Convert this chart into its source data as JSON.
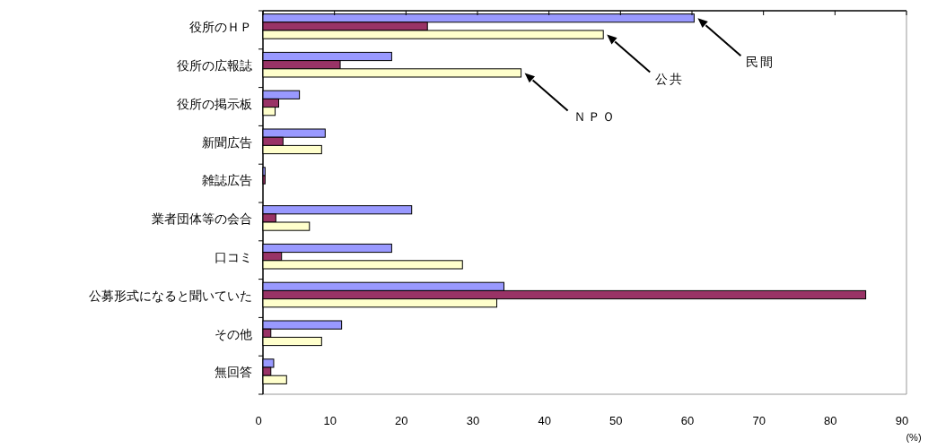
{
  "chart_data": {
    "type": "bar",
    "orientation": "horizontal",
    "xlabel": "(%)",
    "categories": [
      "役所のＨＰ",
      "役所の広報誌",
      "役所の掲示板",
      "新聞広告",
      "雑誌広告",
      "業者団体等の会合",
      "口コミ",
      "公募形式になると聞いていた",
      "その他",
      "無回答"
    ],
    "series": [
      {
        "name": "民間",
        "color": "#9999ff",
        "values": [
          60.3,
          18.0,
          5.1,
          8.7,
          0.3,
          20.8,
          18.0,
          33.7,
          11.0,
          1.5
        ]
      },
      {
        "name": "公共",
        "color": "#993366",
        "values": [
          23.0,
          10.8,
          2.2,
          2.8,
          0.3,
          1.8,
          2.6,
          84.3,
          1.1,
          1.1
        ]
      },
      {
        "name": "ＮＰＯ",
        "color": "#ffffcc",
        "values": [
          47.6,
          36.1,
          1.7,
          8.2,
          0,
          6.5,
          27.9,
          32.7,
          8.2,
          3.3
        ]
      }
    ],
    "xlim": [
      0,
      90
    ],
    "xticks": [
      0,
      10,
      20,
      30,
      40,
      50,
      60,
      70,
      80,
      90
    ],
    "grid": false
  }
}
